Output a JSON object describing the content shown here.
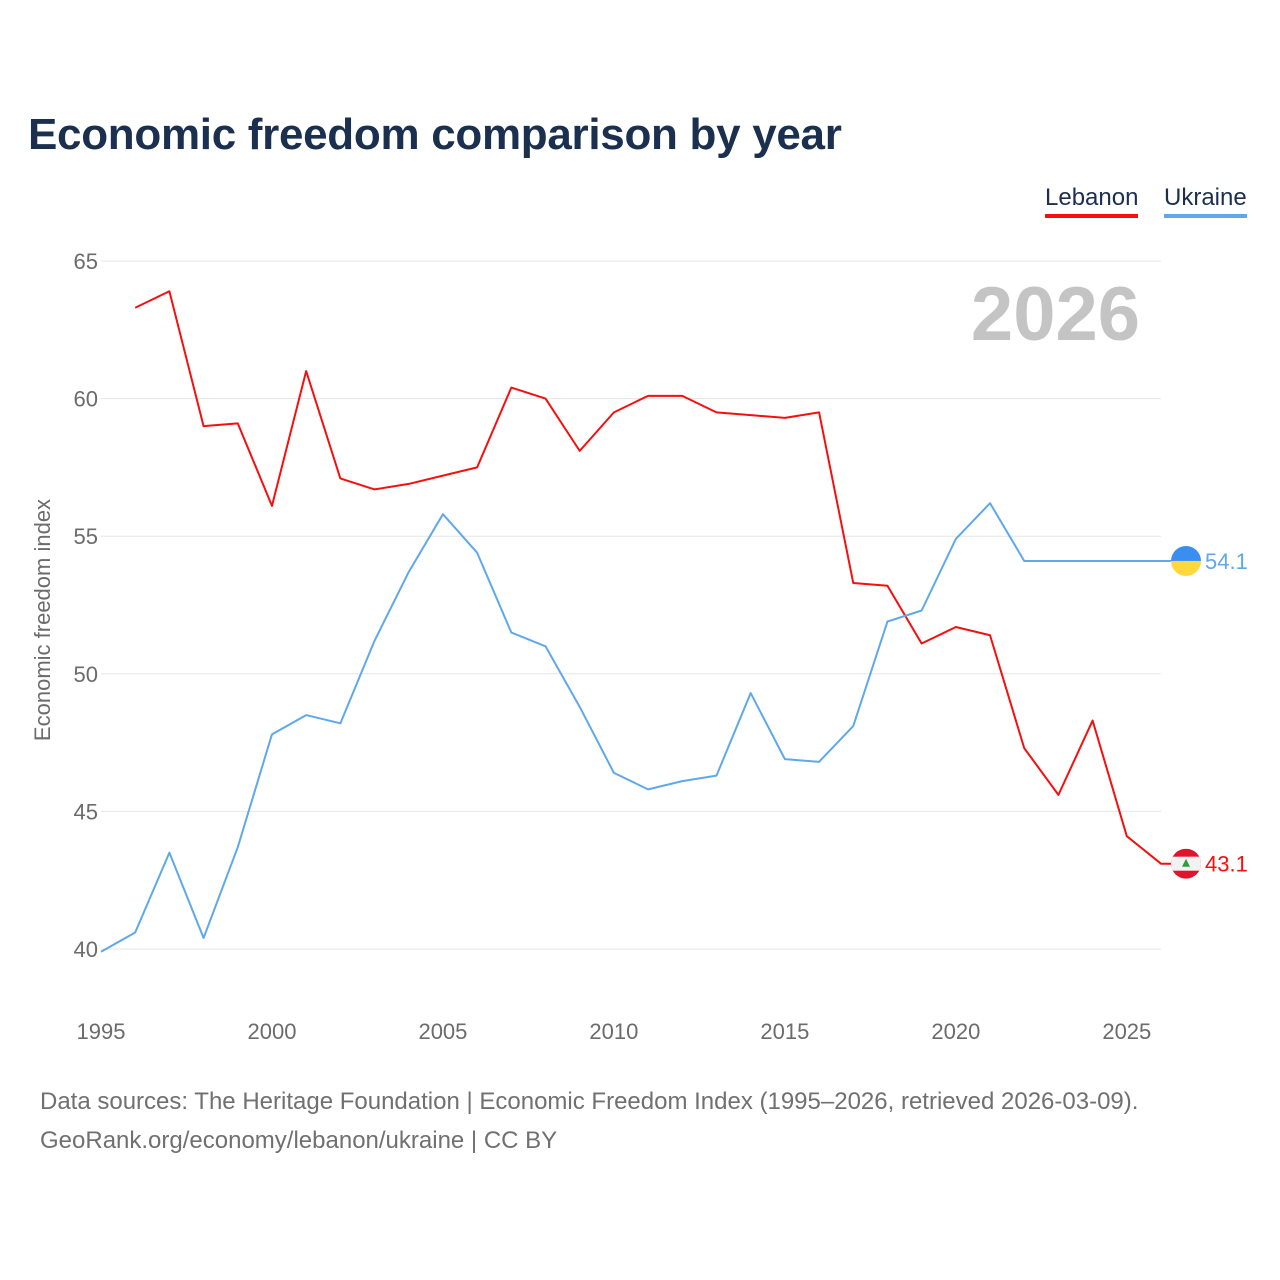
{
  "chart_data": {
    "type": "line",
    "title": "Economic freedom comparison by year",
    "xlabel": "",
    "ylabel": "Economic freedom index",
    "xlim": [
      1995,
      2026
    ],
    "ylim": [
      40,
      65
    ],
    "x_ticks": [
      "1995",
      "2000",
      "2005",
      "2010",
      "2015",
      "2020",
      "2025"
    ],
    "y_ticks": [
      "40",
      "45",
      "50",
      "55",
      "60",
      "65"
    ],
    "grid": true,
    "legend_position": "top-right",
    "current_year": "2026",
    "series": [
      {
        "name": "Lebanon",
        "color": "#f50f0f",
        "end_label": "43.1",
        "flag": "lebanon-flag",
        "x": [
          1996,
          1997,
          1998,
          1999,
          2000,
          2001,
          2002,
          2003,
          2004,
          2005,
          2006,
          2007,
          2008,
          2009,
          2010,
          2011,
          2012,
          2013,
          2014,
          2015,
          2016,
          2017,
          2018,
          2019,
          2020,
          2021,
          2022,
          2023,
          2024,
          2025,
          2026
        ],
        "values": [
          63.3,
          63.9,
          59.0,
          59.1,
          56.1,
          61.0,
          57.1,
          56.7,
          56.9,
          57.2,
          57.5,
          60.4,
          60.0,
          58.1,
          59.5,
          60.1,
          60.1,
          59.5,
          59.4,
          59.3,
          59.5,
          53.3,
          53.2,
          51.1,
          51.7,
          51.4,
          47.3,
          45.6,
          48.3,
          44.1,
          43.1
        ]
      },
      {
        "name": "Ukraine",
        "color": "#5fa8ea",
        "end_label": "54.1",
        "flag": "ukraine-flag",
        "x": [
          1995,
          1996,
          1997,
          1998,
          1999,
          2000,
          2001,
          2002,
          2003,
          2004,
          2005,
          2006,
          2007,
          2008,
          2009,
          2010,
          2011,
          2012,
          2013,
          2014,
          2015,
          2016,
          2017,
          2018,
          2019,
          2020,
          2021,
          2022,
          2023,
          2024,
          2025,
          2026
        ],
        "values": [
          39.9,
          40.6,
          43.5,
          40.4,
          43.7,
          47.8,
          48.5,
          48.2,
          51.2,
          53.7,
          55.8,
          54.4,
          51.5,
          51.0,
          48.8,
          46.4,
          45.8,
          46.1,
          46.3,
          49.3,
          46.9,
          46.8,
          48.1,
          51.9,
          52.3,
          54.9,
          56.2,
          54.1,
          54.1,
          54.1,
          54.1,
          54.1
        ]
      }
    ]
  },
  "footer": {
    "sources": "Data sources: The Heritage Foundation | Economic Freedom Index (1995–2026, retrieved 2026-03-09).",
    "credit": "GeoRank.org/economy/lebanon/ukraine | CC BY"
  }
}
